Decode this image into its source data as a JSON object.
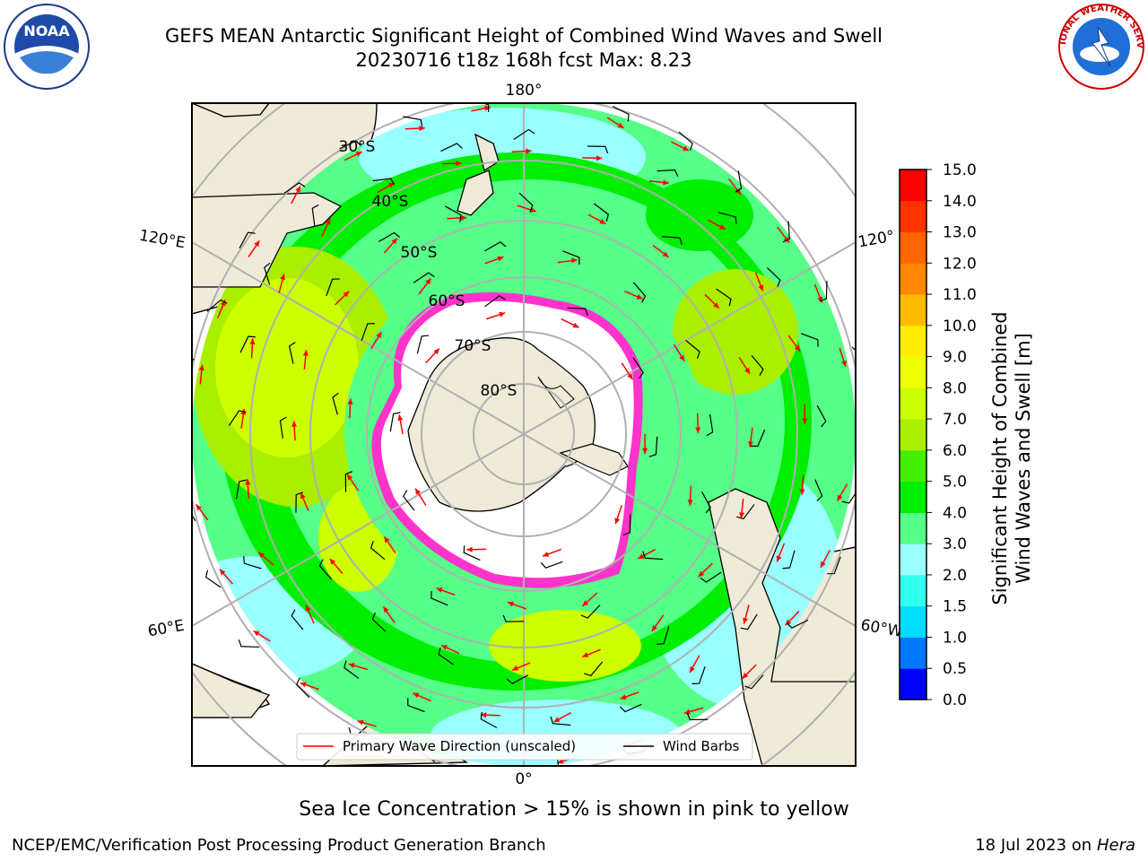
{
  "header": {
    "title_line1": "GEFS MEAN Antarctic Significant Height of Combined Wind Waves and Swell",
    "title_line2": "20230716 t18z 168h fcst   Max: 8.23"
  },
  "logos": {
    "left": {
      "icon": "noaa-logo",
      "text": "NOAA"
    },
    "right": {
      "icon": "nws-logo",
      "text": "NATIONAL WEATHER SERVICE"
    }
  },
  "map": {
    "projection": "south-polar-stereographic",
    "longitude_labels": [
      "180°",
      "120°E",
      "120°",
      "60°E",
      "60°W",
      "0°"
    ],
    "latitude_labels": [
      "30°S",
      "40°S",
      "50°S",
      "60°S",
      "70°S",
      "80°S"
    ],
    "legend": {
      "primary_wave": "Primary Wave Direction (unscaled)",
      "wind_barbs": "Wind Barbs"
    },
    "colors": {
      "land": "#efebd8",
      "ice_free_ocean_interior": "#ffffff",
      "sea_ice": "#ff33cc",
      "wave_arrow": "#ff0000",
      "wind_barb": "#000000"
    }
  },
  "colorbar": {
    "title_line1": "Significant Height of Combined",
    "title_line2": "Wind Waves and Swell [m]",
    "levels": [
      "0.0",
      "0.5",
      "1.0",
      "1.5",
      "2.0",
      "3.0",
      "4.0",
      "5.0",
      "6.0",
      "7.0",
      "8.0",
      "9.0",
      "10.0",
      "11.0",
      "12.0",
      "13.0",
      "14.0",
      "15.0"
    ],
    "colors": [
      "#0000ff",
      "#0077ff",
      "#00ddff",
      "#33ffee",
      "#99ffff",
      "#55ff88",
      "#00ee00",
      "#44ee00",
      "#aaee00",
      "#ccff00",
      "#eeff00",
      "#ffee00",
      "#ffbb00",
      "#ff8800",
      "#ff6600",
      "#ff3300",
      "#ff0000"
    ]
  },
  "caption": "Sea Ice Concentration > 15% is shown in pink to yellow",
  "footer": {
    "left": "NCEP/EMC/Verification Post Processing Product Generation Branch",
    "right_prefix": "18 Jul 2023 on ",
    "right_host": "Hera"
  }
}
